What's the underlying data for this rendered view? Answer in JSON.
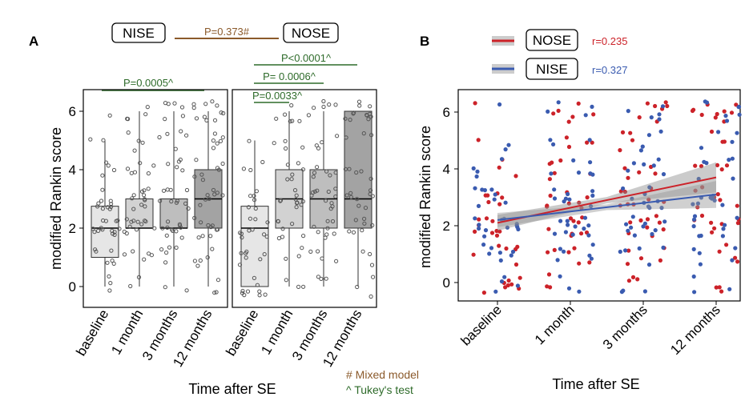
{
  "panel_a": {
    "label": "A",
    "box_labels": {
      "left": "NISE",
      "right": "NOSE"
    },
    "mixed_model_p": "P=0.373#",
    "nise_p": "P=0.0005^",
    "nose_p1": "P<0.0001^",
    "nose_p2": "P= 0.0006^",
    "nose_p3": "P=0.0033^",
    "ylabel": "modified Rankin score",
    "xlabel": "Time after SE",
    "ticks": [
      "0",
      "2",
      "4",
      "6"
    ],
    "categories": [
      "baseline",
      "1 month",
      "3 months",
      "12 months"
    ],
    "footnote_mixed": "# Mixed model",
    "footnote_tukey": "^ Tukey's test"
  },
  "panel_b": {
    "label": "B",
    "legend_nose": "NOSE",
    "legend_nise": "NISE",
    "r_nose": "r=0.235",
    "r_nise": "r=0.327",
    "ylabel": "modified Rankin score",
    "xlabel": "Time after SE",
    "ticks": [
      "0",
      "2",
      "4",
      "6"
    ],
    "categories": [
      "baseline",
      "1 month",
      "3 months",
      "12 months"
    ]
  },
  "colors": {
    "nose": "#cc2229",
    "nise": "#3a5bb0",
    "sig": "#2e6b2a",
    "mixed": "#8b5a2b"
  },
  "chart_data": [
    {
      "type": "box",
      "title": "NISE",
      "xlabel": "Time after SE",
      "ylabel": "modified Rankin score",
      "ylim": [
        -0.4,
        6.6
      ],
      "categories": [
        "baseline",
        "1 month",
        "3 months",
        "12 months"
      ],
      "boxes": [
        {
          "q1": 1.0,
          "median": 2.0,
          "q3": 2.75,
          "low": 0,
          "high": 5
        },
        {
          "q1": 2.0,
          "median": 2.0,
          "q3": 3.0,
          "low": 0,
          "high": 6
        },
        {
          "q1": 2.0,
          "median": 2.0,
          "q3": 3.0,
          "low": 0,
          "high": 6
        },
        {
          "q1": 2.0,
          "median": 3.0,
          "q3": 4.0,
          "low": 0,
          "high": 6
        }
      ],
      "fills": [
        "#e6e6e6",
        "#d2d2d2",
        "#bebebe",
        "#a3a3a3"
      ]
    },
    {
      "type": "box",
      "title": "NOSE",
      "xlabel": "Time after SE",
      "ylabel": "modified Rankin score",
      "ylim": [
        -0.4,
        6.6
      ],
      "categories": [
        "baseline",
        "1 month",
        "3 months",
        "12 months"
      ],
      "boxes": [
        {
          "q1": 0.0,
          "median": 2.0,
          "q3": 2.75,
          "low": 0,
          "high": 5
        },
        {
          "q1": 2.0,
          "median": 3.0,
          "q3": 4.0,
          "low": 0,
          "high": 6
        },
        {
          "q1": 2.0,
          "median": 3.0,
          "q3": 4.0,
          "low": 0,
          "high": 6
        },
        {
          "q1": 2.0,
          "median": 3.0,
          "q3": 6.0,
          "low": 0,
          "high": 6
        }
      ],
      "fills": [
        "#e6e6e6",
        "#d2d2d2",
        "#bebebe",
        "#a3a3a3"
      ]
    },
    {
      "type": "scatter",
      "xlabel": "Time after SE",
      "ylabel": "modified Rankin score",
      "ylim": [
        -0.4,
        6.6
      ],
      "categories": [
        "baseline",
        "1 month",
        "3 months",
        "12 months"
      ],
      "series": [
        {
          "name": "NOSE",
          "r": 0.235,
          "fit": {
            "x": [
              0,
              3
            ],
            "y": [
              2.1,
              3.7
            ]
          },
          "band": 0.28
        },
        {
          "name": "NISE",
          "r": 0.327,
          "fit": {
            "x": [
              0,
              3
            ],
            "y": [
              2.2,
              3.1
            ]
          },
          "band": 0.25
        }
      ]
    }
  ]
}
